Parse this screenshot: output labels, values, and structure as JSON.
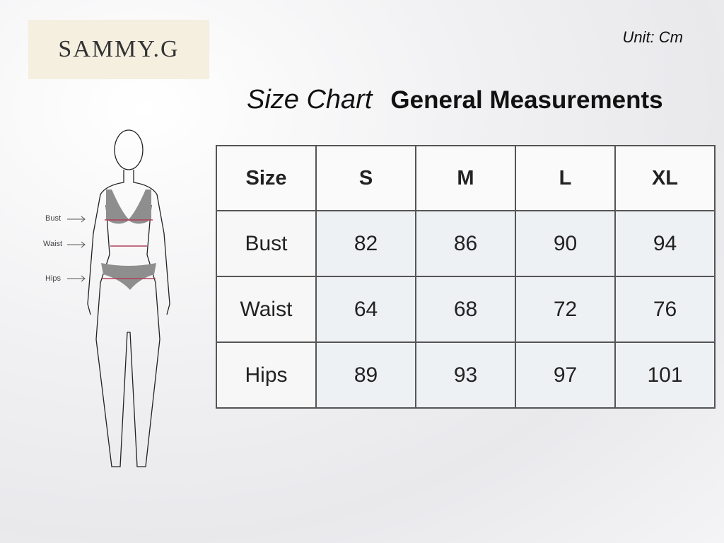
{
  "brand": "SAMMY.G",
  "unit": "Unit: Cm",
  "title": {
    "italic": "Size Chart",
    "bold": "General Measurements"
  },
  "figure_labels": [
    "Bust",
    "Waist",
    "Hips"
  ],
  "table": {
    "headers": [
      "Size",
      "S",
      "M",
      "L",
      "XL"
    ],
    "rows": [
      {
        "label": "Bust",
        "values": [
          "82",
          "86",
          "90",
          "94"
        ]
      },
      {
        "label": "Waist",
        "values": [
          "64",
          "68",
          "72",
          "76"
        ]
      },
      {
        "label": "Hips",
        "values": [
          "89",
          "93",
          "97",
          "101"
        ]
      }
    ]
  },
  "colors": {
    "logo_bg": "#f5efe0",
    "measure_line": "#b0405a"
  }
}
